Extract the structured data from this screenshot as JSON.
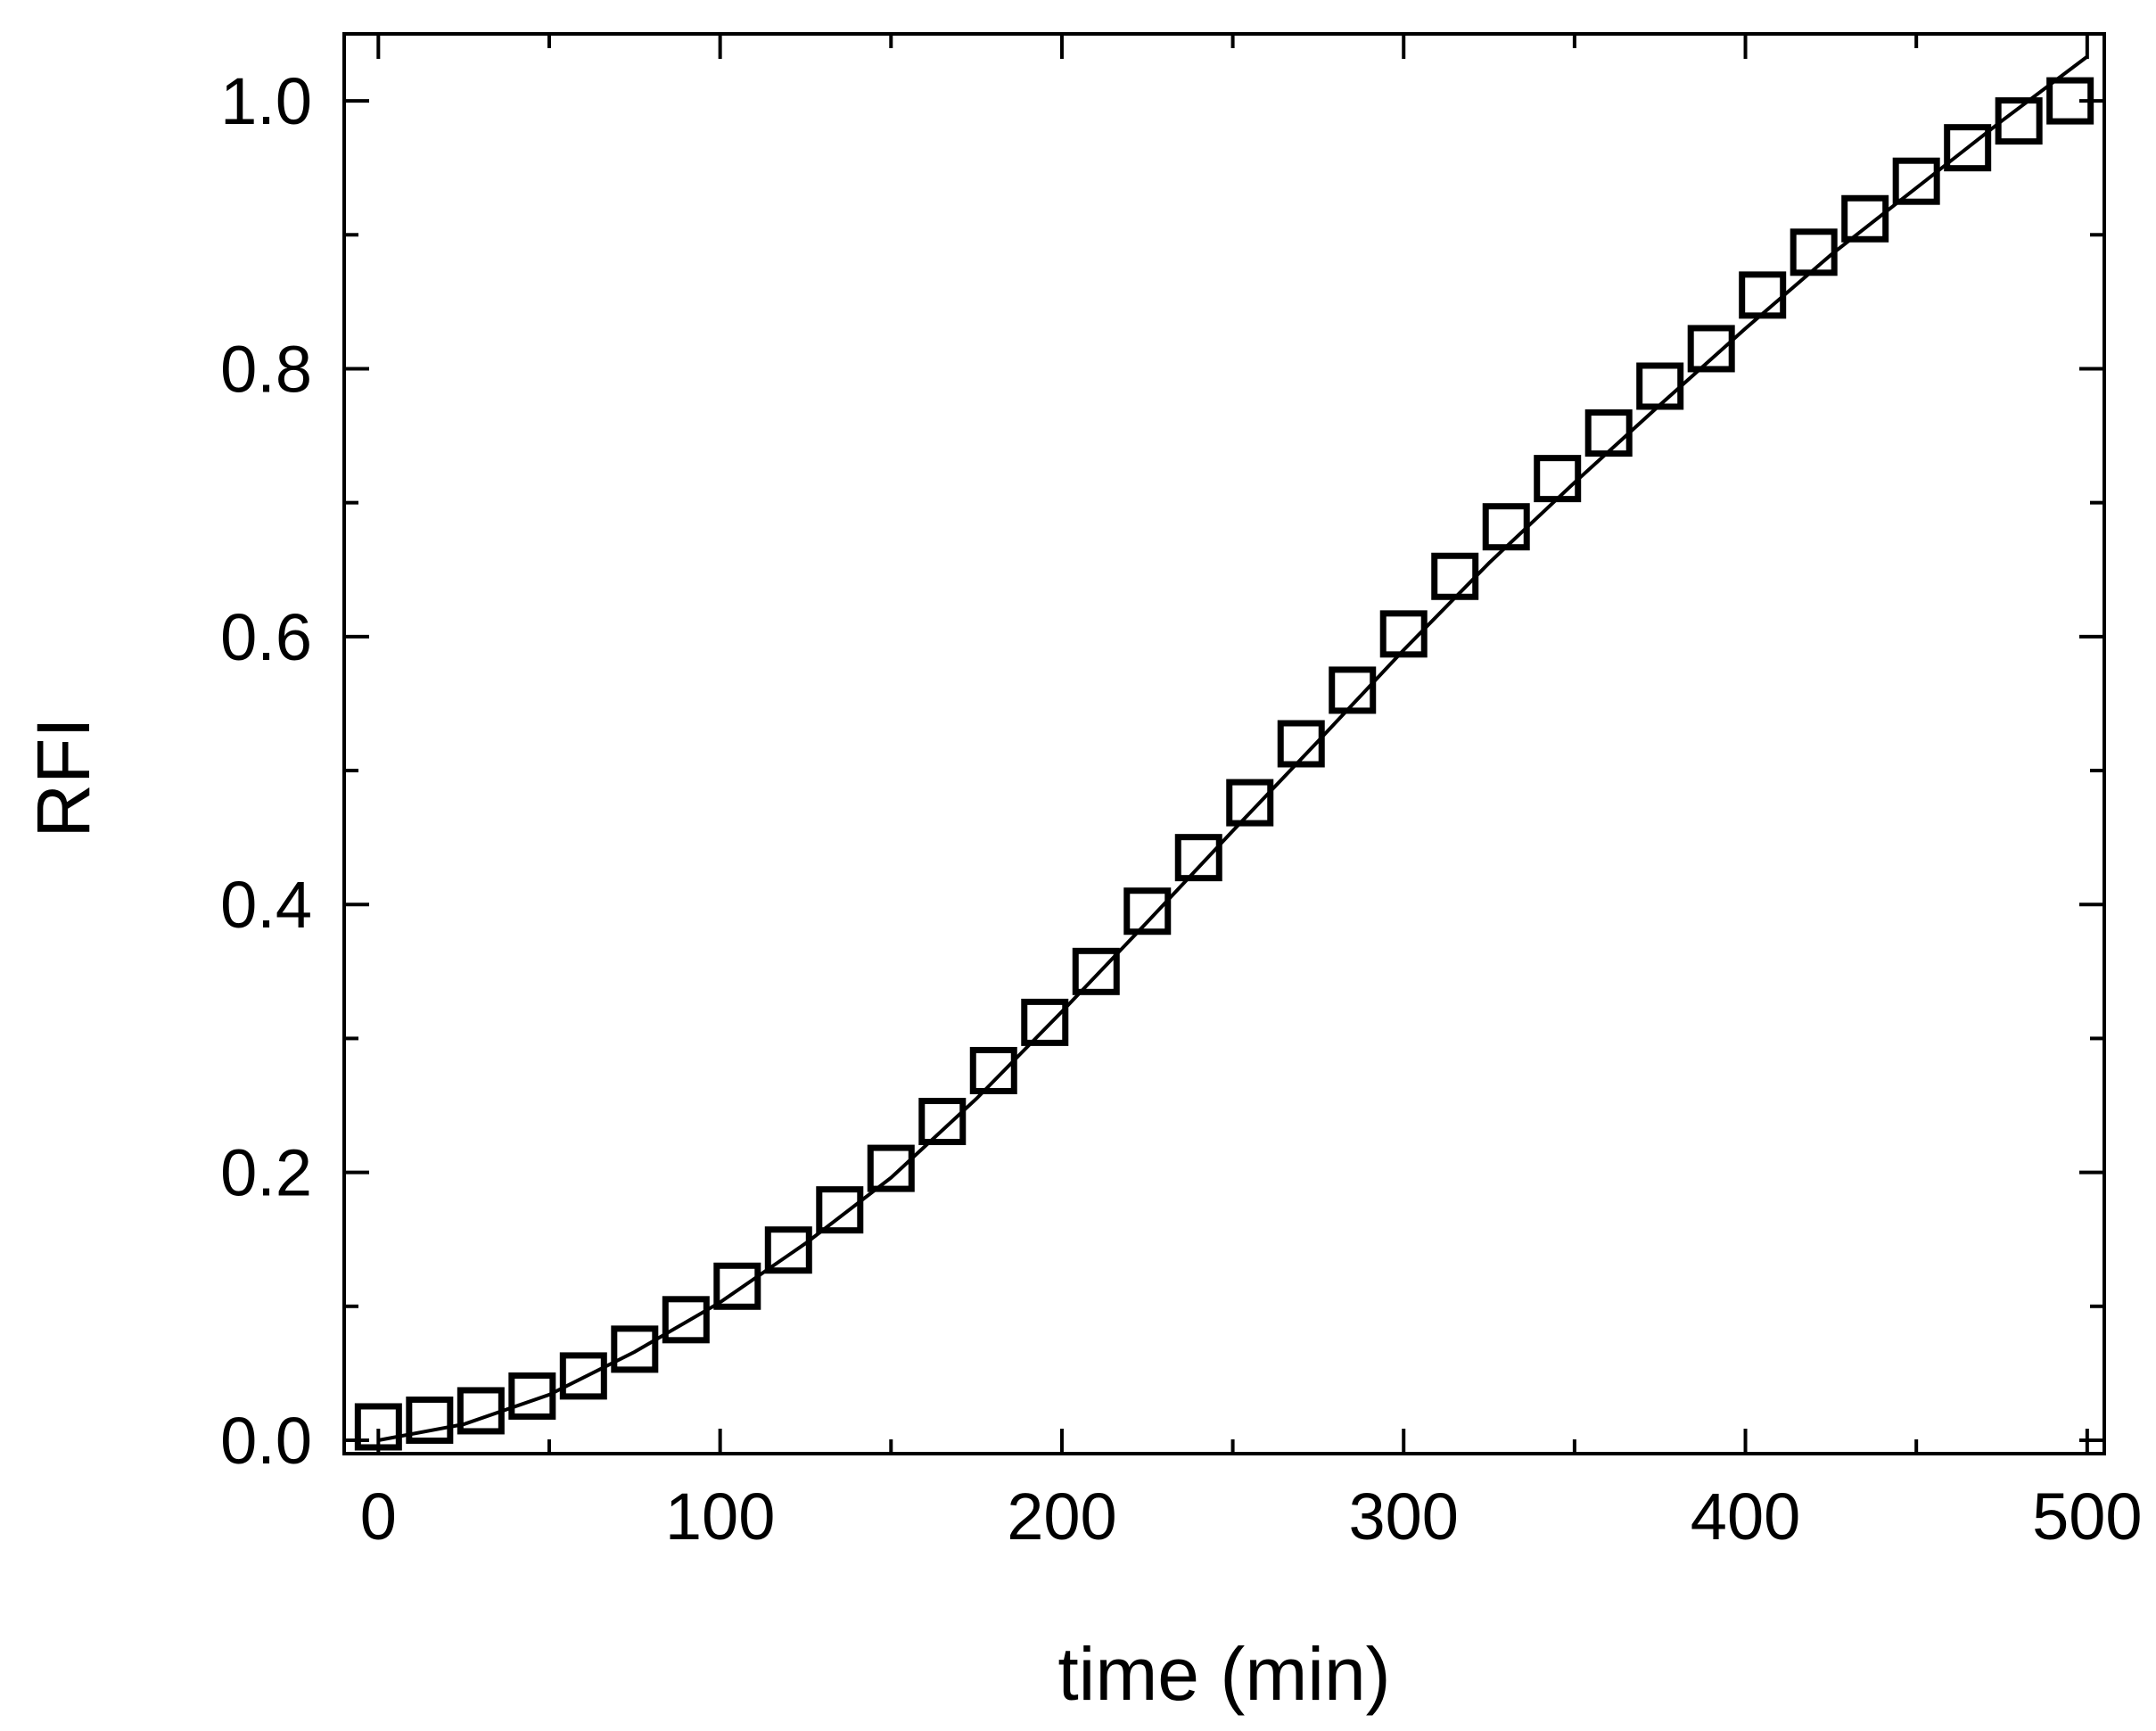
{
  "chart_data": {
    "type": "scatter",
    "title": "",
    "xlabel": "time (min)",
    "ylabel": "RFI",
    "xlim": [
      -10,
      505
    ],
    "ylim": [
      -0.01,
      1.05
    ],
    "x_ticks": [
      0,
      100,
      200,
      300,
      400,
      500
    ],
    "x_tick_labels": [
      "0",
      "100",
      "200",
      "300",
      "400",
      "500"
    ],
    "y_ticks": [
      0.0,
      0.2,
      0.4,
      0.6,
      0.8,
      1.0
    ],
    "y_tick_labels": [
      "0.0",
      "0.2",
      "0.4",
      "0.6",
      "0.8",
      "1.0"
    ],
    "grid": false,
    "legend": "none",
    "colors": {
      "ink": "#000000",
      "background": "#ffffff"
    },
    "series": [
      {
        "kind": "points",
        "marker": "open-square",
        "x": [
          0,
          15,
          30,
          45,
          60,
          75,
          90,
          105,
          120,
          135,
          150,
          165,
          180,
          195,
          210,
          225,
          240,
          255,
          270,
          285,
          300,
          315,
          330,
          345,
          360,
          375,
          390,
          405,
          420,
          435,
          450,
          465,
          480,
          495
        ],
        "y": [
          0.01,
          0.015,
          0.022,
          0.033,
          0.048,
          0.068,
          0.09,
          0.115,
          0.142,
          0.172,
          0.203,
          0.238,
          0.276,
          0.312,
          0.35,
          0.395,
          0.435,
          0.476,
          0.52,
          0.56,
          0.602,
          0.645,
          0.682,
          0.718,
          0.752,
          0.787,
          0.815,
          0.855,
          0.887,
          0.912,
          0.94,
          0.965,
          0.985,
          1.0
        ]
      },
      {
        "kind": "line",
        "x": [
          0,
          25,
          50,
          75,
          100,
          125,
          150,
          175,
          200,
          225,
          250,
          275,
          300,
          325,
          350,
          375,
          400,
          425,
          450,
          475,
          500
        ],
        "y": [
          0.0,
          0.012,
          0.034,
          0.066,
          0.103,
          0.147,
          0.196,
          0.255,
          0.32,
          0.387,
          0.455,
          0.522,
          0.59,
          0.655,
          0.715,
          0.773,
          0.83,
          0.885,
          0.935,
          0.985,
          1.033
        ]
      }
    ]
  }
}
